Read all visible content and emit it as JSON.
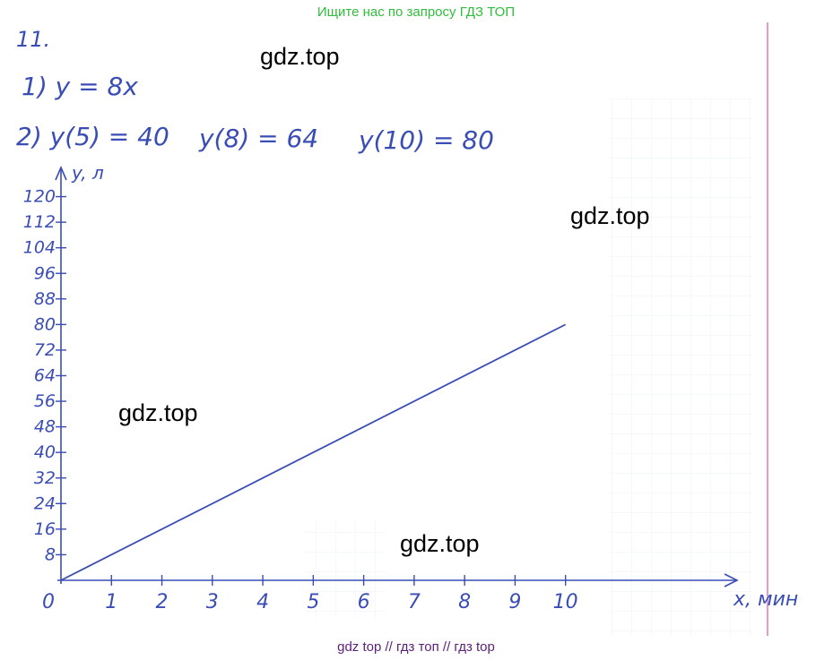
{
  "header": "Ищите нас по запросу ГДЗ ТОП",
  "footer": "gdz top  //  гдз топ  //  гдз top",
  "watermarks": [
    "gdz.top",
    "gdz.top",
    "gdz.top",
    "gdz.top"
  ],
  "notes": [
    "11.",
    "1) y = 8x",
    "2) y(5) = 40",
    "y(8) = 64",
    "y(10) = 80"
  ],
  "chart_data": {
    "type": "line",
    "x": [
      0,
      10
    ],
    "values": [
      0,
      80
    ],
    "color": "#3a4db5",
    "xlabel": "x, мин",
    "ylabel": "y, л",
    "xlim": [
      0,
      13.4
    ],
    "ylim": [
      0,
      128
    ],
    "xticks": [
      0,
      1,
      2,
      3,
      4,
      5,
      6,
      7,
      8,
      9,
      10
    ],
    "yticks": [
      8,
      16,
      24,
      32,
      40,
      48,
      56,
      64,
      72,
      80,
      88,
      96,
      104,
      112,
      120
    ]
  }
}
